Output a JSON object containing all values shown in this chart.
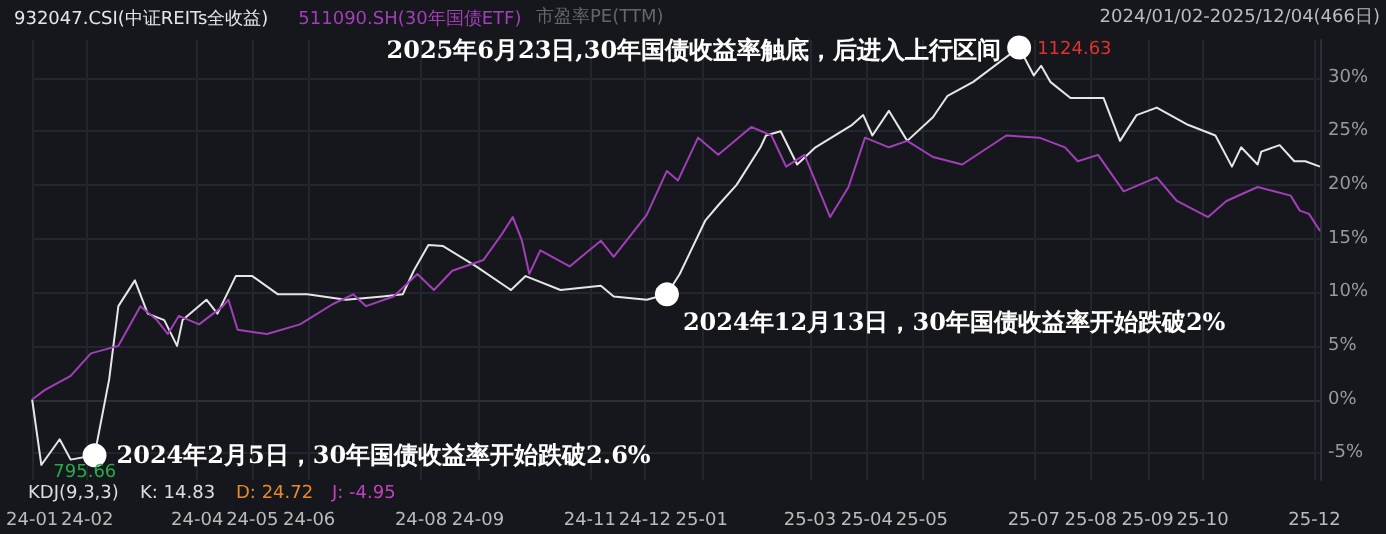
{
  "chart_data": {
    "type": "line",
    "xlim": [
      "2024-01-02",
      "2025-12-04"
    ],
    "xticks": [
      {
        "value": "2024-01-02",
        "label": "24-01"
      },
      {
        "value": "2024-02",
        "label": "24-02"
      },
      {
        "value": "2024-04",
        "label": "24-04"
      },
      {
        "value": "2024-05",
        "label": "24-05"
      },
      {
        "value": "2024-06",
        "label": "24-06"
      },
      {
        "value": "2024-08",
        "label": "24-08"
      },
      {
        "value": "2024-09",
        "label": "24-09"
      },
      {
        "value": "2024-11",
        "label": "24-11"
      },
      {
        "value": "2024-12",
        "label": "24-12"
      },
      {
        "value": "2025-01",
        "label": "25-01"
      },
      {
        "value": "2025-03",
        "label": "25-03"
      },
      {
        "value": "2025-04",
        "label": "25-04"
      },
      {
        "value": "2025-05",
        "label": "25-05"
      },
      {
        "value": "2025-07",
        "label": "25-07"
      },
      {
        "value": "2025-08",
        "label": "25-08"
      },
      {
        "value": "2025-09",
        "label": "25-09"
      },
      {
        "value": "2025-10",
        "label": "25-10"
      },
      {
        "value": "2025-12",
        "label": "25-12"
      }
    ],
    "ylim": [
      -7.5,
      33.5
    ],
    "yticks": [
      {
        "value": -5,
        "label": "-5%"
      },
      {
        "value": 0,
        "label": "0%"
      },
      {
        "value": 5,
        "label": "5%"
      },
      {
        "value": 10,
        "label": "10%"
      },
      {
        "value": 15,
        "label": "15%"
      },
      {
        "value": 20,
        "label": "20%"
      },
      {
        "value": 25,
        "label": "25%"
      },
      {
        "value": 30,
        "label": "30%"
      }
    ],
    "grid": true,
    "legend": "top left",
    "marker": "none",
    "line_style": "solid",
    "series": [
      {
        "name": "932047.CSI(中证REITs全收益)",
        "color": "#e6e6e6",
        "x": [
          "2024-01-02",
          "2024-01-07",
          "2024-01-17",
          "2024-01-23",
          "2024-02-05",
          "2024-02-13",
          "2024-02-18",
          "2024-02-27",
          "2024-03-05",
          "2024-03-14",
          "2024-03-21",
          "2024-03-24",
          "2024-04-06",
          "2024-04-12",
          "2024-04-22",
          "2024-05-01",
          "2024-05-15",
          "2024-05-31",
          "2024-06-21",
          "2024-07-11",
          "2024-07-22",
          "2024-07-28",
          "2024-08-05",
          "2024-08-13",
          "2024-08-31",
          "2024-09-19",
          "2024-09-27",
          "2024-10-16",
          "2024-11-07",
          "2024-11-14",
          "2024-12-02",
          "2024-12-13",
          "2024-12-20",
          "2025-01-03",
          "2025-01-10",
          "2025-01-20",
          "2025-02-02",
          "2025-02-05",
          "2025-02-13",
          "2025-02-22",
          "2025-03-04",
          "2025-03-24",
          "2025-03-30",
          "2025-04-04",
          "2025-04-13",
          "2025-04-23",
          "2025-05-07",
          "2025-05-15",
          "2025-05-29",
          "2025-06-23",
          "2025-07-01",
          "2025-07-05",
          "2025-07-10",
          "2025-07-21",
          "2025-08-08",
          "2025-08-17",
          "2025-08-26",
          "2025-09-06",
          "2025-09-23",
          "2025-10-08",
          "2025-10-17",
          "2025-10-22",
          "2025-10-31",
          "2025-11-02",
          "2025-11-12",
          "2025-11-20",
          "2025-11-26",
          "2025-12-04"
        ],
        "values": [
          0,
          -6.1,
          -3.7,
          -5.6,
          -5.2,
          1.9,
          8.7,
          11.1,
          8,
          7.4,
          5,
          7.4,
          9.3,
          8,
          11.5,
          11.5,
          9.8,
          9.8,
          9.3,
          9.6,
          9.8,
          12,
          14.4,
          14.3,
          12.4,
          10.2,
          11.5,
          10.2,
          10.6,
          9.6,
          9.3,
          9.8,
          11.7,
          16.7,
          18.1,
          20,
          23.5,
          24.6,
          25,
          21.9,
          23.5,
          25.6,
          26.5,
          24.6,
          26.9,
          24.1,
          26.3,
          28.3,
          29.6,
          32.8,
          30.2,
          31.1,
          29.6,
          28.1,
          28.1,
          24.1,
          26.5,
          27.2,
          25.6,
          24.6,
          21.7,
          23.5,
          21.9,
          23.1,
          23.7,
          22.2,
          22.2,
          21.7
        ]
      },
      {
        "name": "511090.SH(30年国债ETF)",
        "color": "#a23fb8",
        "x": [
          "2024-01-02",
          "2024-01-09",
          "2024-01-23",
          "2024-02-03",
          "2024-02-18",
          "2024-03-01",
          "2024-03-10",
          "2024-03-16",
          "2024-03-22",
          "2024-04-02",
          "2024-04-15",
          "2024-04-18",
          "2024-04-23",
          "2024-05-09",
          "2024-05-27",
          "2024-06-14",
          "2024-06-25",
          "2024-07-02",
          "2024-07-17",
          "2024-07-30",
          "2024-08-08",
          "2024-08-18",
          "2024-09-04",
          "2024-09-14",
          "2024-09-20",
          "2024-09-25",
          "2024-09-29",
          "2024-10-05",
          "2024-10-21",
          "2024-11-07",
          "2024-11-14",
          "2024-12-02",
          "2024-12-13",
          "2024-12-19",
          "2024-12-30",
          "2025-01-10",
          "2025-01-28",
          "2025-02-08",
          "2025-02-16",
          "2025-02-26",
          "2025-03-12",
          "2025-03-22",
          "2025-03-31",
          "2025-04-13",
          "2025-04-23",
          "2025-05-07",
          "2025-05-23",
          "2025-06-16",
          "2025-07-04",
          "2025-07-18",
          "2025-07-25",
          "2025-08-05",
          "2025-08-19",
          "2025-09-06",
          "2025-09-17",
          "2025-10-04",
          "2025-10-14",
          "2025-10-31",
          "2025-11-09",
          "2025-11-18",
          "2025-11-23",
          "2025-11-28",
          "2025-12-04"
        ],
        "values": [
          0,
          0.9,
          2.2,
          4.3,
          5,
          8.7,
          7.4,
          6.1,
          7.8,
          7,
          8.7,
          9.3,
          6.5,
          6.1,
          7,
          8.9,
          9.8,
          8.7,
          9.6,
          11.7,
          10.2,
          12,
          13,
          15.4,
          17,
          14.8,
          11.7,
          13.9,
          12.4,
          14.8,
          13.3,
          17.2,
          21.3,
          20.4,
          24.4,
          22.8,
          25.4,
          24.6,
          21.7,
          22.8,
          17,
          19.8,
          24.4,
          23.5,
          24.1,
          22.6,
          21.9,
          24.6,
          24.4,
          23.5,
          22.2,
          22.8,
          19.4,
          20.7,
          18.5,
          17,
          18.5,
          19.8,
          19.4,
          19,
          17.6,
          17.3,
          15.7
        ]
      }
    ],
    "annotations": [
      {
        "text": "2024年2月5日，30年国债收益率开始跌破2.6%",
        "x": "2024-02-05",
        "y": -5.2
      },
      {
        "text": "2024年12月13日，30年国债收益率开始跌破2%",
        "x": "2024-12-13",
        "y": 9.8
      },
      {
        "text": "2025年6月23日,30年国债收益率触底，后进入上行区间",
        "x": "2025-06-23",
        "y": 32.8
      },
      {
        "text": "1124.63",
        "x": "2025-06-23",
        "y": 32.8
      },
      {
        "text": "795.66",
        "x": "2024-01-07",
        "y": -6.1
      },
      "2024/01/02-2025/12/04(466日)",
      "市盈率PE(TTM)",
      "KDJ(9,3,3)",
      "K: 14.83",
      "D: 24.72",
      "J: -4.95"
    ]
  }
}
